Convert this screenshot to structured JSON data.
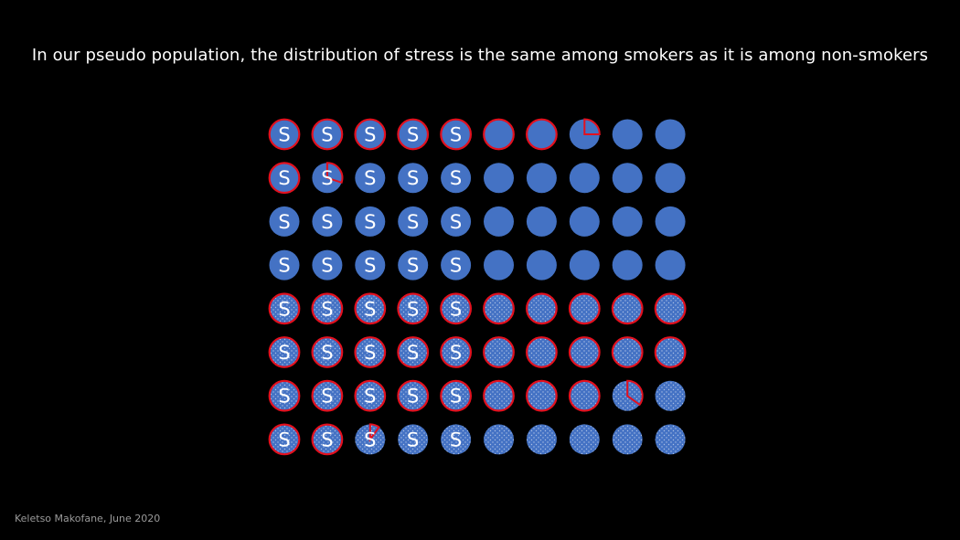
{
  "title": "In our pseudo population, the distribution of stress is the same among smokers as it is among non-smokers",
  "footer": "Keletso Makofane, June 2020",
  "colors": {
    "circle_fill": "#4472C4",
    "outline": "#E3101E",
    "dots": "#B4C7E7",
    "label": "#FFFFFF",
    "background": "#000000"
  },
  "marker_letter": "S",
  "rows": [
    {
      "stress": [
        1,
        1,
        1,
        1,
        1,
        0,
        0,
        0,
        0,
        0
      ],
      "red": [
        1,
        1,
        1,
        1,
        1,
        1,
        1,
        0.25,
        0,
        0
      ],
      "dotted": false
    },
    {
      "stress": [
        1,
        1,
        1,
        1,
        1,
        0,
        0,
        0,
        0,
        0
      ],
      "red": [
        1,
        0.3,
        0,
        0,
        0,
        0,
        0,
        0,
        0,
        0
      ],
      "dotted": false
    },
    {
      "stress": [
        1,
        1,
        1,
        1,
        1,
        0,
        0,
        0,
        0,
        0
      ],
      "red": [
        0,
        0,
        0,
        0,
        0,
        0,
        0,
        0,
        0,
        0
      ],
      "dotted": false
    },
    {
      "stress": [
        1,
        1,
        1,
        1,
        1,
        0,
        0,
        0,
        0,
        0
      ],
      "red": [
        0,
        0,
        0,
        0,
        0,
        0,
        0,
        0,
        0,
        0
      ],
      "dotted": false
    },
    {
      "stress": [
        1,
        1,
        1,
        1,
        1,
        0,
        0,
        0,
        0,
        0
      ],
      "red": [
        1,
        1,
        1,
        1,
        1,
        1,
        1,
        1,
        1,
        1
      ],
      "dotted": true
    },
    {
      "stress": [
        1,
        1,
        1,
        1,
        1,
        0,
        0,
        0,
        0,
        0
      ],
      "red": [
        1,
        1,
        1,
        1,
        1,
        1,
        1,
        1,
        1,
        1
      ],
      "dotted": true
    },
    {
      "stress": [
        1,
        1,
        1,
        1,
        1,
        0,
        0,
        0,
        0,
        0
      ],
      "red": [
        1,
        1,
        1,
        1,
        1,
        1,
        1,
        1,
        0.35,
        0
      ],
      "dotted": true
    },
    {
      "stress": [
        1,
        1,
        1,
        1,
        1,
        0,
        0,
        0,
        0,
        0
      ],
      "red": [
        1,
        1,
        0.1,
        0,
        0,
        0,
        0,
        0,
        0,
        0
      ],
      "dotted": true
    }
  ]
}
